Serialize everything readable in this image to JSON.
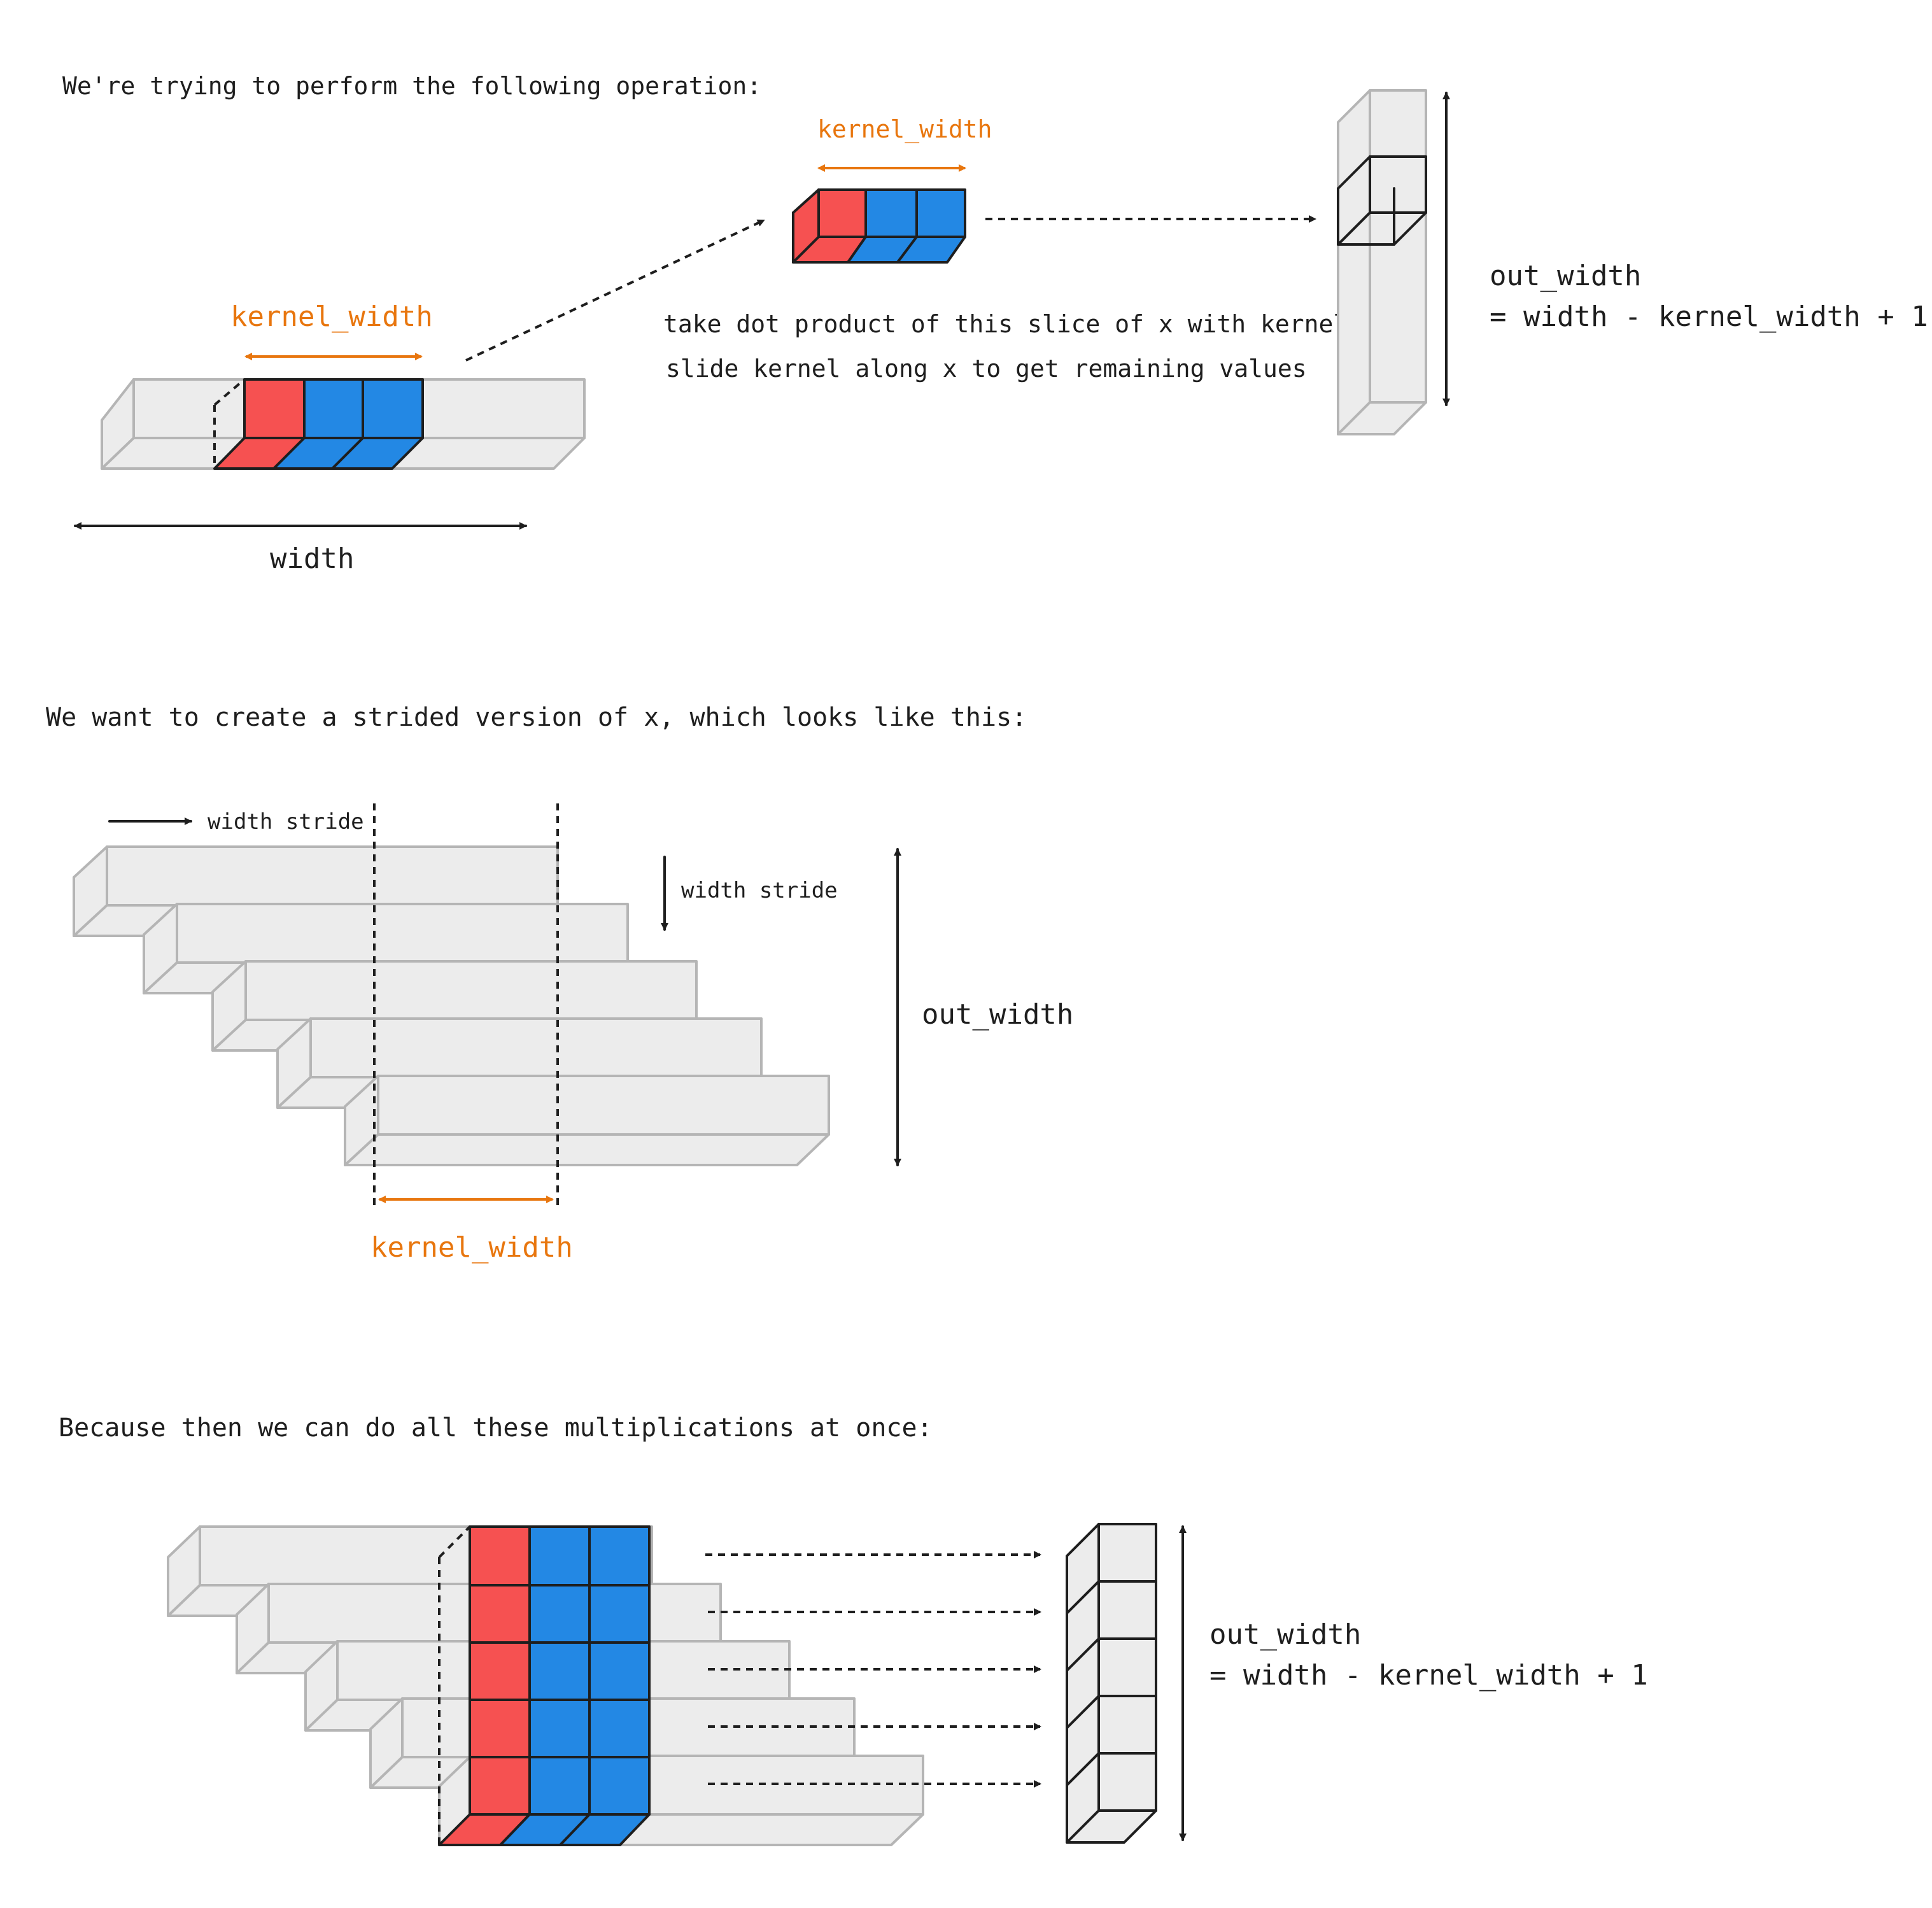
{
  "section1": {
    "heading": "We're trying to perform the following operation:",
    "kernel_width_label_input": "kernel_width",
    "kernel_width_label_kernel": "kernel_width",
    "width_label": "width",
    "note_line1": "take dot product of this slice of x with kernel",
    "note_line2": "slide kernel along x to get remaining values",
    "out_width_line1": "out_width",
    "out_width_line2": "= width - kernel_width + 1"
  },
  "section2": {
    "heading": "We want to create a strided version of x, which looks like this:",
    "width_stride_horizontal": "width stride",
    "width_stride_vertical": "width stride",
    "out_width_label": "out_width",
    "kernel_width_label": "kernel_width"
  },
  "section3": {
    "heading": "Because then we can do all these multiplications at once:",
    "out_width_line1": "out_width",
    "out_width_line2": "= width - kernel_width + 1"
  },
  "colors": {
    "kernel_first_cell": "#f65151",
    "kernel_other_cells": "#2388e4",
    "annotation_orange": "#e8760e",
    "tensor_fill": "#ececec",
    "tensor_outline": "#b5b5b5"
  }
}
